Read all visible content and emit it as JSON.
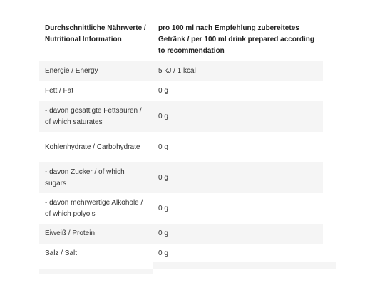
{
  "table": {
    "header": {
      "col1": "Durchschnittliche Nährwerte / Nutritional Information",
      "col2": "pro 100 ml nach Empfehlung zubereitetes Getränk / per 100 ml drink prepared according to recommendation"
    },
    "rows": [
      {
        "label": "Energie / Energy",
        "value": "5 kJ / 1 kcal"
      },
      {
        "label": "Fett / Fat",
        "value": "0 g"
      },
      {
        "label": "- davon gesättigte Fettsäuren / of which saturates",
        "value": "0 g"
      },
      {
        "label": "Kohlenhydrate / Carbohydrate",
        "value": "0 g"
      },
      {
        "label": "- davon Zucker / of which sugars",
        "value": "0 g"
      },
      {
        "label": "- davon mehrwertige Alkohole / of which polyols",
        "value": "0 g"
      },
      {
        "label": "Eiweiß / Protein",
        "value": "0 g"
      },
      {
        "label": "Salz / Salt",
        "value": "0 g"
      }
    ]
  }
}
